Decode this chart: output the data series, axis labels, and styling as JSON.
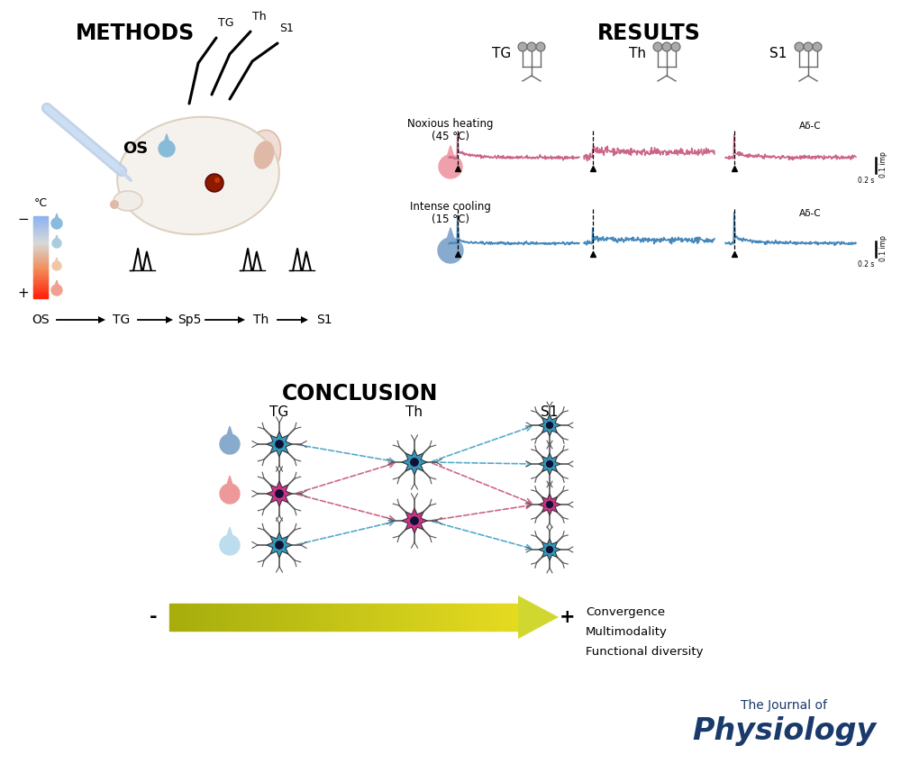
{
  "title_methods": "METHODS",
  "title_results": "RESULTS",
  "title_conclusion": "CONCLUSION",
  "journal_line1": "The Journal of",
  "journal_line2": "Physiology",
  "journal_color": "#1a3a6b",
  "background_color": "#ffffff",
  "noxious_label1": "Noxious heating",
  "noxious_label2": "(45 °C)",
  "cooling_label1": "Intense cooling",
  "cooling_label2": "(15 °C)",
  "adelta_label": "Aδ-C",
  "arrow_label_minus": "-",
  "arrow_label_plus": "+",
  "convergence_text": "Convergence\nMultimodality\nFunctional diversity",
  "pink_signal_color": "#cc6688",
  "blue_signal_color": "#4488bb",
  "neuron_blue": "#3399bb",
  "neuron_pink": "#cc3388",
  "neuron_dark": "#111133",
  "dendrite_color": "#555555",
  "drop_blue": "#88aacc",
  "drop_pink": "#ee9999",
  "drop_light": "#bbddee",
  "results_col_labels": [
    "TG",
    "Th",
    "S1"
  ],
  "conclusion_col_labels": [
    "TG",
    "Th",
    "S1"
  ],
  "pathway_labels": [
    "OS",
    "TG",
    "Sp5",
    "Th",
    "S1"
  ]
}
